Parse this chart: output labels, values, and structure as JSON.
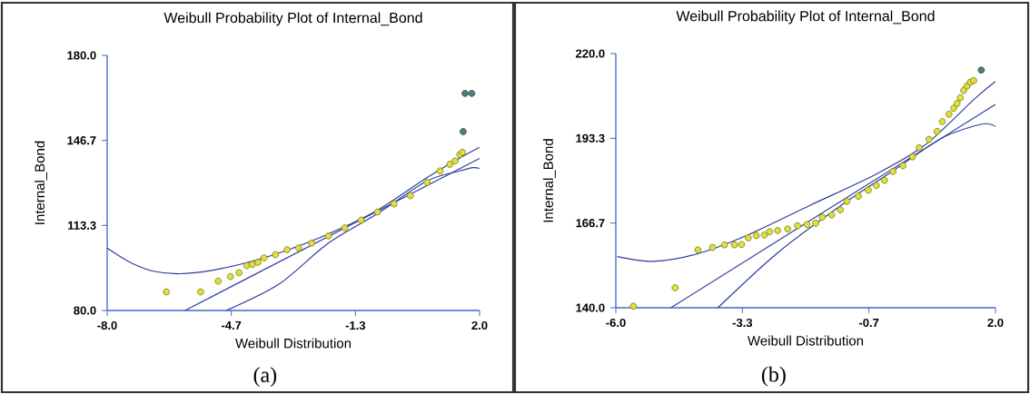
{
  "chart_data": [
    {
      "type": "scatter",
      "title": "Weibull Probability Plot of Internal_Bond",
      "xlabel": "Weibull Distribution",
      "ylabel": "Internal_Bond",
      "annotations": [
        "(a)"
      ],
      "xlim": [
        -8,
        2
      ],
      "ylim": [
        80,
        180
      ],
      "xticks": [
        {
          "value": -8,
          "label": "-8.0"
        },
        {
          "value": -4.667,
          "label": "-4.7"
        },
        {
          "value": -1.333,
          "label": "-1.3"
        },
        {
          "value": 2,
          "label": "2.0"
        }
      ],
      "yticks": [
        {
          "value": 80,
          "label": "80.0"
        },
        {
          "value": 113.333,
          "label": "113.3"
        },
        {
          "value": 146.667,
          "label": "146.7"
        },
        {
          "value": 180,
          "label": "180.0"
        }
      ],
      "series": [
        {
          "color": "#dfe03c",
          "x": [
            -6.41,
            -5.49,
            -5.02,
            -4.69,
            -4.46,
            -4.25,
            -4.1,
            -3.95,
            -3.79,
            -3.48,
            -3.17,
            -2.86,
            -2.51,
            -2.06,
            -1.62,
            -1.18,
            -0.74,
            -0.3,
            0.14,
            0.59,
            0.94,
            1.2,
            1.34,
            1.47,
            1.54
          ],
          "values": [
            87.3,
            87.3,
            91.5,
            93.3,
            94.8,
            97.6,
            98.1,
            98.9,
            100.6,
            101.9,
            103.8,
            104.5,
            106.4,
            109.2,
            112.4,
            115.4,
            118.6,
            121.8,
            125.0,
            130.2,
            134.7,
            137.3,
            138.6,
            141.1,
            142.0
          ]
        },
        {
          "color": "#4f7f7c",
          "x": [
            1.56,
            1.61,
            1.79
          ],
          "values": [
            150.1,
            165.1,
            165.1
          ]
        },
        {
          "type": "line",
          "color": "#2a3b9c",
          "x": [
            -5.91,
            2.0
          ],
          "values": [
            80,
            139.6
          ]
        },
        {
          "type": "line",
          "color": "#2a3b9c",
          "x": [
            -8,
            -7.36,
            -6.75,
            -6.04,
            -5.16,
            -4.27,
            -3.39,
            -2.06,
            -0.74,
            0.59,
            1.47,
            2.0
          ],
          "values": [
            104.5,
            98.7,
            95.4,
            94.4,
            95.8,
            98.7,
            102.5,
            110,
            119.3,
            132.1,
            139.8,
            144
          ]
        },
        {
          "type": "line",
          "color": "#2a3b9c",
          "x": [
            -4.8,
            -3.39,
            -2.06,
            -0.74,
            0.59,
            1.47,
            1.82,
            2.0
          ],
          "values": [
            80,
            90.3,
            106.4,
            118,
            130.8,
            134.7,
            136,
            135.7
          ]
        }
      ]
    },
    {
      "type": "scatter",
      "title": "Weibull Probability Plot of Internal_Bond",
      "xlabel": "Weibull Distribution",
      "ylabel": "Internal_Bond",
      "annotations": [
        "(b)"
      ],
      "xlim": [
        -6,
        2
      ],
      "ylim": [
        140,
        220
      ],
      "xticks": [
        {
          "value": -6,
          "label": "-6.0"
        },
        {
          "value": -3.333,
          "label": "-3.3"
        },
        {
          "value": -0.667,
          "label": "-0.7"
        },
        {
          "value": 2,
          "label": "2.0"
        }
      ],
      "yticks": [
        {
          "value": 140,
          "label": "140.0"
        },
        {
          "value": 166.667,
          "label": "166.7"
        },
        {
          "value": 193.333,
          "label": "193.3"
        },
        {
          "value": 220,
          "label": "220.0"
        }
      ],
      "series": [
        {
          "color": "#dfe03c",
          "x": [
            -5.63,
            -4.75,
            -4.27,
            -3.96,
            -3.71,
            -3.5,
            -3.35,
            -3.21,
            -3.04,
            -2.87,
            -2.76,
            -2.59,
            -2.38,
            -2.17,
            -1.97,
            -1.79,
            -1.65,
            -1.45,
            -1.27,
            -1.13,
            -0.89,
            -0.68,
            -0.51,
            -0.34,
            -0.16,
            0.05,
            0.25,
            0.39,
            0.6,
            0.77,
            0.88,
            1.02,
            1.12,
            1.19,
            1.26,
            1.33,
            1.4,
            1.47,
            1.54
          ],
          "values": [
            140.5,
            146.3,
            158.2,
            159.0,
            159.8,
            159.8,
            159.9,
            162.0,
            162.7,
            162.9,
            163.9,
            164.3,
            164.8,
            165.8,
            166.2,
            166.6,
            168.5,
            169.2,
            170.8,
            173.5,
            175.1,
            177.0,
            178.5,
            180.1,
            182.9,
            184.7,
            187.5,
            190.4,
            193.0,
            195.5,
            198.6,
            200.9,
            202.8,
            204.3,
            206.1,
            208.4,
            209.8,
            211.0,
            211.5
          ]
        },
        {
          "color": "#4f7f7c",
          "x": [
            1.7
          ],
          "values": [
            214.8
          ]
        },
        {
          "type": "line",
          "color": "#2a3b9c",
          "x": [
            -4.84,
            2.0
          ],
          "values": [
            140,
            204.0
          ]
        },
        {
          "type": "line",
          "color": "#2a3b9c",
          "x": [
            -5.97,
            -5.22,
            -4.32,
            -3.28,
            -1.9,
            -0.51,
            0.53,
            1.57,
            2.0
          ],
          "values": [
            156.1,
            154.6,
            156.8,
            162.5,
            172.3,
            182.1,
            191.4,
            205.9,
            211.2
          ]
        },
        {
          "type": "line",
          "color": "#2a3b9c",
          "x": [
            -3.85,
            -2.59,
            -1.2,
            -0.16,
            0.88,
            1.71,
            2.0
          ],
          "values": [
            140,
            157.3,
            172.8,
            183.1,
            193.5,
            197.8,
            197.1
          ]
        }
      ]
    }
  ]
}
